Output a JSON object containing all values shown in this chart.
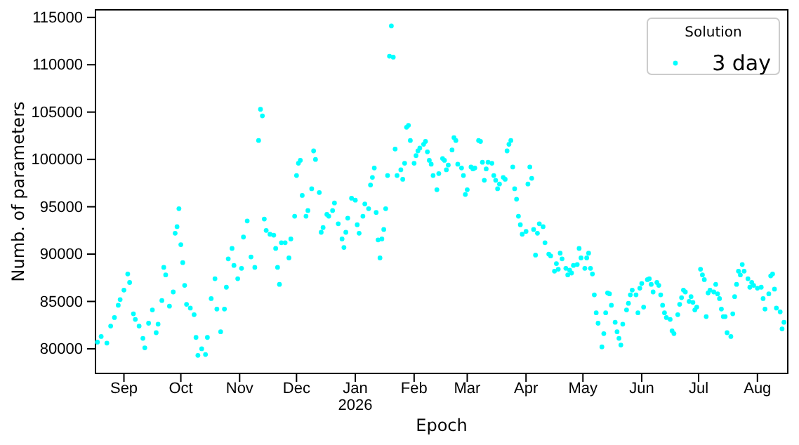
{
  "chart_data": {
    "type": "scatter",
    "xlabel": "Epoch",
    "ylabel": "Numb. of parameters",
    "legend_title": "Solution",
    "legend": "top right",
    "marker": "circle",
    "grid": false,
    "xlim": [
      "2025-08-17",
      "2026-08-17"
    ],
    "xticks": [
      {
        "value": "2025-09-01",
        "label": "Sep"
      },
      {
        "value": "2025-10-01",
        "label": "Oct"
      },
      {
        "value": "2025-11-01",
        "label": "Nov"
      },
      {
        "value": "2025-12-01",
        "label": "Dec"
      },
      {
        "value": "2026-01-01",
        "label": "Jan\n2026"
      },
      {
        "value": "2026-02-01",
        "label": "Feb"
      },
      {
        "value": "2026-03-01",
        "label": "Mar"
      },
      {
        "value": "2026-04-01",
        "label": "Apr"
      },
      {
        "value": "2026-05-01",
        "label": "May"
      },
      {
        "value": "2026-06-01",
        "label": "Jun"
      },
      {
        "value": "2026-07-01",
        "label": "Jul"
      },
      {
        "value": "2026-08-01",
        "label": "Aug"
      }
    ],
    "ylim": [
      77400,
      115800
    ],
    "yticks": [
      80000,
      85000,
      90000,
      95000,
      100000,
      105000,
      110000,
      115000
    ],
    "series": [
      {
        "name": "3 day",
        "color": "#00ffff",
        "x": [
          "2025-08-18",
          "2025-08-20",
          "2025-08-23",
          "2025-08-25",
          "2025-08-27",
          "2025-08-29",
          "2025-08-30",
          "2025-09-01",
          "2025-09-03",
          "2025-09-04",
          "2025-09-06",
          "2025-09-07",
          "2025-09-09",
          "2025-09-11",
          "2025-09-12",
          "2025-09-14",
          "2025-09-16",
          "2025-09-18",
          "2025-09-19",
          "2025-09-21",
          "2025-09-22",
          "2025-09-23",
          "2025-09-25",
          "2025-09-27",
          "2025-09-28",
          "2025-09-29",
          "2025-09-30",
          "2025-10-01",
          "2025-10-02",
          "2025-10-03",
          "2025-10-04",
          "2025-10-06",
          "2025-10-08",
          "2025-10-09",
          "2025-10-10",
          "2025-10-12",
          "2025-10-14",
          "2025-10-15",
          "2025-10-17",
          "2025-10-19",
          "2025-10-20",
          "2025-10-22",
          "2025-10-24",
          "2025-10-25",
          "2025-10-26",
          "2025-10-28",
          "2025-10-29",
          "2025-10-31",
          "2025-11-02",
          "2025-11-03",
          "2025-11-05",
          "2025-11-07",
          "2025-11-09",
          "2025-11-11",
          "2025-11-12",
          "2025-11-13",
          "2025-11-14",
          "2025-11-15",
          "2025-11-17",
          "2025-11-19",
          "2025-11-20",
          "2025-11-21",
          "2025-11-22",
          "2025-11-23",
          "2025-11-25",
          "2025-11-27",
          "2025-11-28",
          "2025-11-30",
          "2025-12-01",
          "2025-12-02",
          "2025-12-03",
          "2025-12-04",
          "2025-12-06",
          "2025-12-07",
          "2025-12-09",
          "2025-12-10",
          "2025-12-11",
          "2025-12-13",
          "2025-12-14",
          "2025-12-15",
          "2025-12-17",
          "2025-12-18",
          "2025-12-20",
          "2025-12-21",
          "2025-12-23",
          "2025-12-25",
          "2025-12-26",
          "2025-12-27",
          "2025-12-28",
          "2025-12-30",
          "2026-01-01",
          "2026-01-02",
          "2026-01-03",
          "2026-01-05",
          "2026-01-06",
          "2026-01-08",
          "2026-01-09",
          "2026-01-10",
          "2026-01-11",
          "2026-01-12",
          "2026-01-13",
          "2026-01-14",
          "2026-01-15",
          "2026-01-16",
          "2026-01-17",
          "2026-01-18",
          "2026-01-19",
          "2026-01-20",
          "2026-01-21",
          "2026-01-22",
          "2026-01-23",
          "2026-01-25",
          "2026-01-26",
          "2026-01-27",
          "2026-01-28",
          "2026-01-29",
          "2026-01-30",
          "2026-02-01",
          "2026-02-02",
          "2026-02-03",
          "2026-02-04",
          "2026-02-06",
          "2026-02-07",
          "2026-02-08",
          "2026-02-09",
          "2026-02-10",
          "2026-02-11",
          "2026-02-13",
          "2026-02-14",
          "2026-02-16",
          "2026-02-17",
          "2026-02-18",
          "2026-02-19",
          "2026-02-21",
          "2026-02-22",
          "2026-02-23",
          "2026-02-24",
          "2026-02-26",
          "2026-02-27",
          "2026-02-28",
          "2026-03-01",
          "2026-03-03",
          "2026-03-04",
          "2026-03-05",
          "2026-03-07",
          "2026-03-08",
          "2026-03-09",
          "2026-03-10",
          "2026-03-11",
          "2026-03-12",
          "2026-03-14",
          "2026-03-15",
          "2026-03-16",
          "2026-03-17",
          "2026-03-18",
          "2026-03-20",
          "2026-03-21",
          "2026-03-22",
          "2026-03-23",
          "2026-03-24",
          "2026-03-25",
          "2026-03-26",
          "2026-03-27",
          "2026-03-28",
          "2026-03-29",
          "2026-03-30",
          "2026-04-01",
          "2026-04-02",
          "2026-04-03",
          "2026-04-04",
          "2026-04-05",
          "2026-04-06",
          "2026-04-07",
          "2026-04-08",
          "2026-04-10",
          "2026-04-11",
          "2026-04-13",
          "2026-04-14",
          "2026-04-16",
          "2026-04-17",
          "2026-04-18",
          "2026-04-19",
          "2026-04-20",
          "2026-04-22",
          "2026-04-23",
          "2026-04-24",
          "2026-04-25",
          "2026-04-26",
          "2026-04-28",
          "2026-04-29",
          "2026-04-30",
          "2026-05-02",
          "2026-05-03",
          "2026-05-04",
          "2026-05-05",
          "2026-05-06",
          "2026-05-07",
          "2026-05-08",
          "2026-05-09",
          "2026-05-11",
          "2026-05-12",
          "2026-05-13",
          "2026-05-14",
          "2026-05-15",
          "2026-05-16",
          "2026-05-18",
          "2026-05-19",
          "2026-05-20",
          "2026-05-21",
          "2026-05-22",
          "2026-05-24",
          "2026-05-25",
          "2026-05-26",
          "2026-05-27",
          "2026-05-29",
          "2026-05-30",
          "2026-05-31",
          "2026-06-01",
          "2026-06-02",
          "2026-06-04",
          "2026-06-05",
          "2026-06-06",
          "2026-06-07",
          "2026-06-09",
          "2026-06-10",
          "2026-06-11",
          "2026-06-12",
          "2026-06-13",
          "2026-06-14",
          "2026-06-16",
          "2026-06-17",
          "2026-06-18",
          "2026-06-20",
          "2026-06-21",
          "2026-06-22",
          "2026-06-23",
          "2026-06-24",
          "2026-06-26",
          "2026-06-27",
          "2026-06-28",
          "2026-06-29",
          "2026-06-30",
          "2026-07-02",
          "2026-07-03",
          "2026-07-04",
          "2026-07-05",
          "2026-07-06",
          "2026-07-07",
          "2026-07-09",
          "2026-07-10",
          "2026-07-11",
          "2026-07-12",
          "2026-07-13",
          "2026-07-14",
          "2026-07-15",
          "2026-07-16",
          "2026-07-18",
          "2026-07-19",
          "2026-07-20",
          "2026-07-21",
          "2026-07-22",
          "2026-07-23",
          "2026-07-24",
          "2026-07-25",
          "2026-07-27",
          "2026-07-28",
          "2026-07-29",
          "2026-07-30",
          "2026-08-01",
          "2026-08-03",
          "2026-08-04",
          "2026-08-05",
          "2026-08-07",
          "2026-08-08",
          "2026-08-09",
          "2026-08-10",
          "2026-08-11",
          "2026-08-13",
          "2026-08-14",
          "2026-08-15"
        ],
        "values": [
          80700,
          81300,
          80600,
          82400,
          83300,
          84600,
          85200,
          86200,
          87900,
          87000,
          83700,
          83100,
          82400,
          81100,
          80100,
          82700,
          84100,
          81700,
          82600,
          85100,
          88600,
          87800,
          84500,
          86000,
          92200,
          92900,
          94800,
          91000,
          89100,
          86700,
          84700,
          84300,
          83600,
          81200,
          79300,
          80000,
          79400,
          81200,
          85300,
          87400,
          84200,
          81800,
          84200,
          86500,
          89500,
          90600,
          88800,
          87400,
          88500,
          91800,
          93500,
          89700,
          88600,
          102000,
          105300,
          104600,
          93700,
          92500,
          92100,
          92000,
          90600,
          88600,
          86800,
          91200,
          91200,
          89600,
          91600,
          94000,
          98300,
          99600,
          99900,
          96200,
          94000,
          94600,
          96900,
          100900,
          100000,
          96500,
          92300,
          92800,
          94200,
          94000,
          94600,
          95400,
          93200,
          91600,
          90700,
          92300,
          93800,
          95900,
          95700,
          93100,
          92200,
          94000,
          95300,
          94800,
          97300,
          98100,
          99100,
          94400,
          91500,
          89600,
          91600,
          92600,
          94800,
          98300,
          110900,
          114100,
          110800,
          101100,
          98300,
          98900,
          97900,
          99600,
          103400,
          103600,
          102000,
          99600,
          100400,
          100900,
          101200,
          101600,
          101900,
          100800,
          99900,
          99500,
          98300,
          96800,
          98500,
          100100,
          99900,
          98900,
          99400,
          101000,
          102300,
          102000,
          99500,
          99100,
          98300,
          96300,
          96800,
          99200,
          99000,
          99100,
          102000,
          101900,
          99700,
          97800,
          99000,
          99700,
          99600,
          98300,
          97800,
          96900,
          97400,
          98100,
          97900,
          100900,
          101600,
          102000,
          99200,
          96900,
          95800,
          94000,
          93100,
          92100,
          92400,
          97400,
          99200,
          98000,
          92600,
          89900,
          92200,
          93200,
          92900,
          91200,
          90000,
          89800,
          88200,
          89000,
          88400,
          90100,
          89500,
          88500,
          87800,
          88300,
          88000,
          88800,
          88900,
          90600,
          89600,
          88500,
          89600,
          90100,
          88500,
          87900,
          85700,
          83800,
          82700,
          80200,
          81600,
          83800,
          85900,
          85800,
          84600,
          82800,
          81800,
          81100,
          80400,
          82600,
          84100,
          84800,
          85700,
          86200,
          85700,
          83800,
          86400,
          86900,
          84400,
          87300,
          87400,
          86800,
          86000,
          87000,
          86700,
          85700,
          84600,
          83800,
          83300,
          83100,
          81900,
          81600,
          83600,
          84700,
          85400,
          86200,
          86000,
          85000,
          85500,
          84900,
          84100,
          84400,
          88400,
          87800,
          87300,
          83400,
          85900,
          86200,
          86000,
          86800,
          85800,
          85300,
          84200,
          83400,
          83400,
          81700,
          81300,
          83700,
          85500,
          86800,
          88200,
          87800,
          88900,
          88200,
          87400,
          86500,
          87000,
          86700,
          86400,
          86500,
          85300,
          84200,
          85800,
          87700,
          87900,
          86300,
          84300,
          83900,
          82100,
          82800
        ]
      }
    ]
  }
}
